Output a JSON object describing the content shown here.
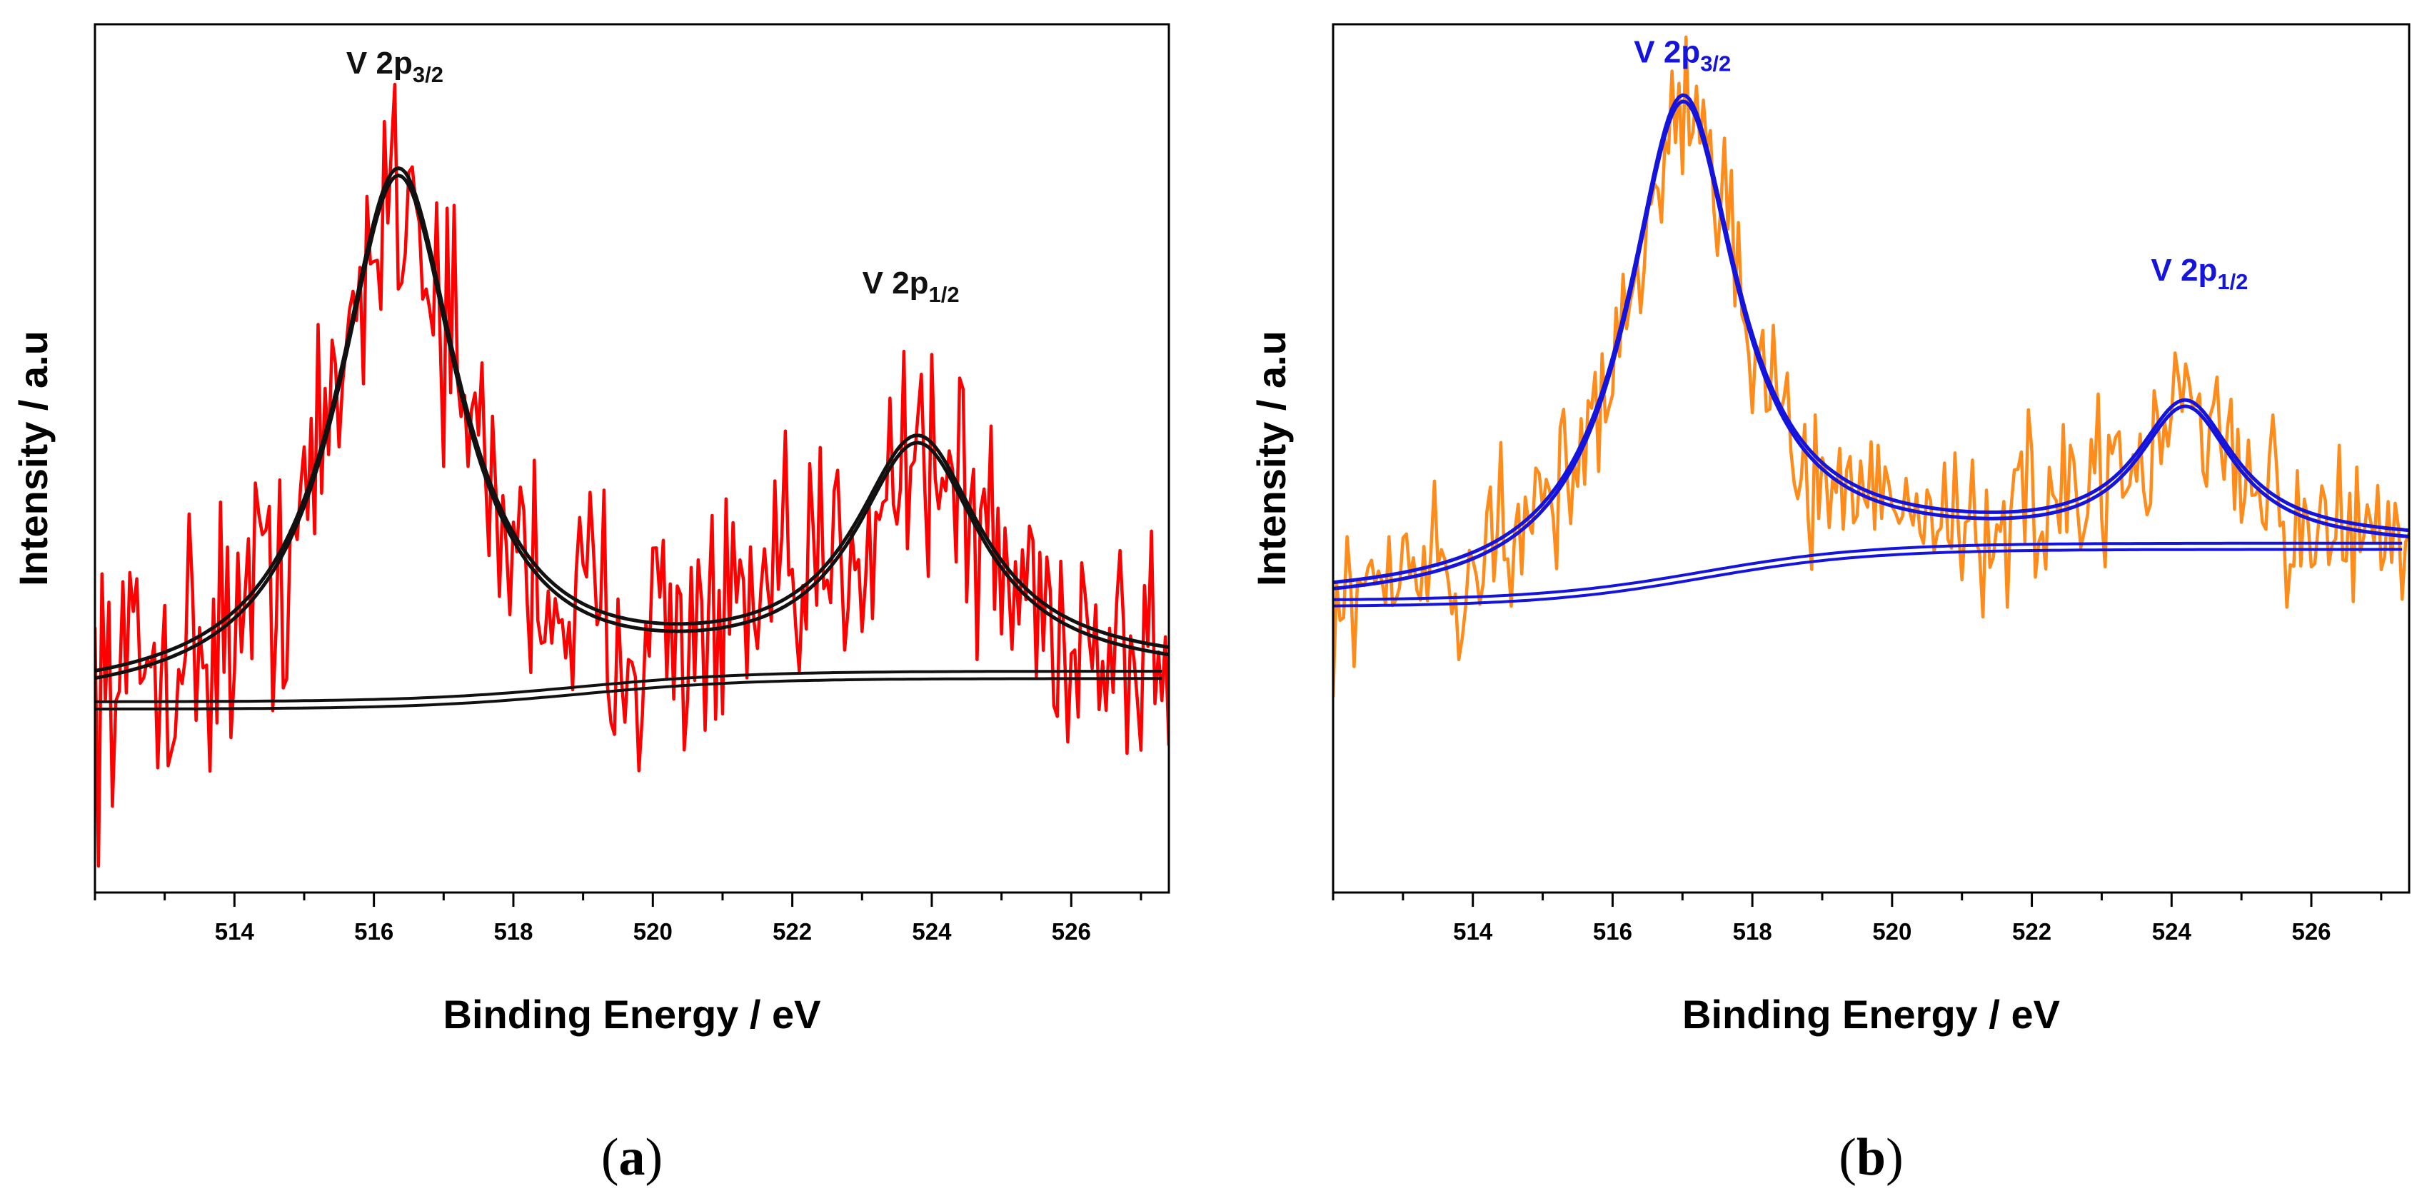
{
  "chart_data": [
    {
      "panel": "(a)",
      "panel_letter": "a",
      "type": "line",
      "xlabel": "Binding Energy / eV",
      "ylabel": "Intensity / a.u",
      "xlim": [
        512.0,
        527.4
      ],
      "ylim": [
        -0.3,
        1.12
      ],
      "major_ticks": [
        514,
        516,
        518,
        520,
        522,
        524,
        526
      ],
      "tick_labels": [
        "514",
        "516",
        "518",
        "520",
        "522",
        "524",
        "526"
      ],
      "grid": false,
      "colors": {
        "raw": "#ff0000",
        "fit": "#111111"
      },
      "annotations": [
        {
          "base": "V 2p",
          "sub": "3/2",
          "x": 516.3,
          "y": 1.0
        },
        {
          "base": "V 2p",
          "sub": "1/2",
          "x": 523.7,
          "y": 0.64
        }
      ],
      "series": [
        {
          "role": "raw",
          "noise_amplitude": 0.11
        },
        {
          "role": "envelope",
          "peaks": [
            {
              "center": 516.35,
              "height": 0.86,
              "width": 1.05
            },
            {
              "center": 523.8,
              "height": 0.37,
              "width": 1.1
            }
          ],
          "background": {
            "start": 0.0,
            "end": 0.05
          }
        },
        {
          "role": "background",
          "start": 0.0,
          "end": 0.05,
          "step_center": 519.0
        }
      ]
    },
    {
      "panel": "(b)",
      "panel_letter": "b",
      "type": "line",
      "xlabel": "Binding Energy / eV",
      "ylabel": "Intensity / a.u",
      "xlim": [
        512.0,
        527.4
      ],
      "ylim": [
        -0.55,
        1.12
      ],
      "major_ticks": [
        514,
        516,
        518,
        520,
        522,
        524,
        526
      ],
      "tick_labels": [
        "514",
        "516",
        "518",
        "520",
        "522",
        "524",
        "526"
      ],
      "grid": false,
      "colors": {
        "raw": "#ff8c1a",
        "fit": "#1414dc"
      },
      "annotations": [
        {
          "base": "V 2p",
          "sub": "3/2",
          "x": 517.0,
          "y": 1.0
        },
        {
          "base": "V 2p",
          "sub": "1/2",
          "x": 524.4,
          "y": 0.58
        }
      ],
      "series": [
        {
          "role": "raw",
          "noise_amplitude": 0.08
        },
        {
          "role": "envelope",
          "peaks": [
            {
              "center": 517.0,
              "height": 0.92,
              "width": 0.95
            },
            {
              "center": 524.2,
              "height": 0.26,
              "width": 0.85
            }
          ],
          "background": {
            "start": 0.0,
            "end": 0.11
          }
        },
        {
          "role": "background",
          "start": 0.0,
          "end": 0.11,
          "step_center": 517.3
        }
      ]
    }
  ]
}
